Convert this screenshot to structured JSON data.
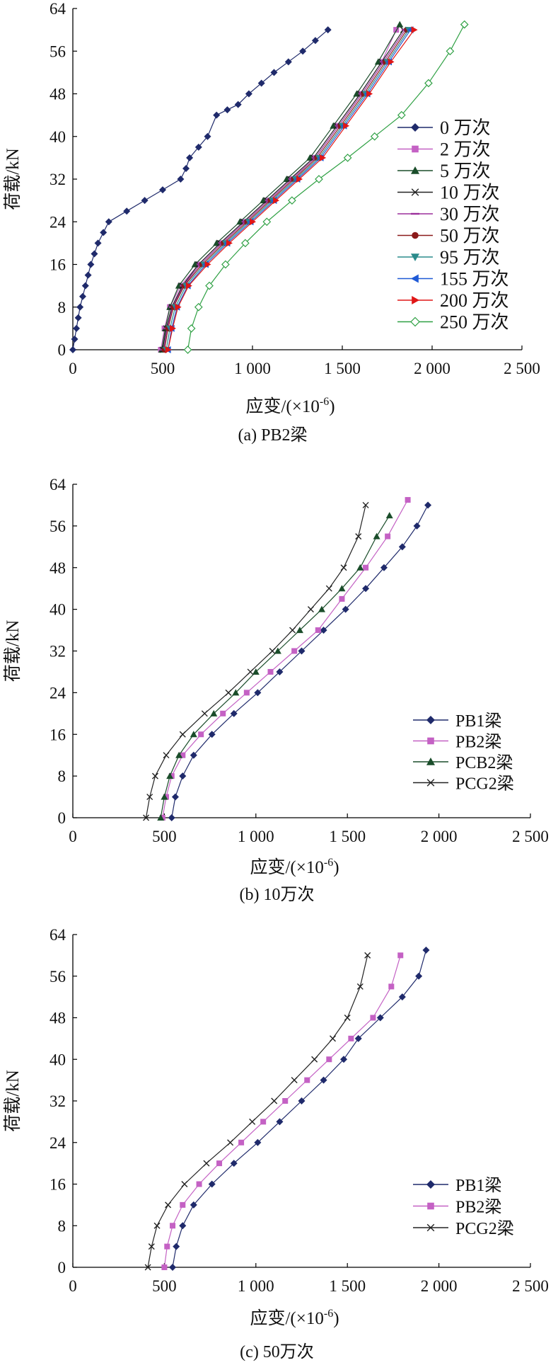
{
  "chart_data": [
    {
      "type": "line",
      "caption": "(a) PB2梁",
      "xlabel": "应变/(×10",
      "xlabel_sup": "-6",
      "xlabel_end": ")",
      "ylabel": "荷载/kN",
      "xlim": [
        0,
        2500
      ],
      "ylim": [
        0,
        64
      ],
      "xticks": [
        "0",
        "500",
        "1 000",
        "1 500",
        "2 000",
        "2 500"
      ],
      "yticks": [
        "0",
        "8",
        "16",
        "24",
        "32",
        "40",
        "48",
        "56",
        "64"
      ],
      "legend": "right",
      "series": [
        {
          "name": "0 万次",
          "color": "#1f2a6b",
          "marker": "diamond",
          "x": [
            0,
            10,
            20,
            30,
            40,
            55,
            70,
            85,
            100,
            120,
            140,
            170,
            200,
            300,
            400,
            500,
            600,
            630,
            650,
            700,
            750,
            800,
            860,
            920,
            980,
            1050,
            1120,
            1200,
            1280,
            1350,
            1420
          ],
          "y": [
            0,
            2,
            4,
            6,
            8,
            10,
            12,
            14,
            16,
            18,
            20,
            22,
            24,
            26,
            28,
            30,
            32,
            34,
            36,
            38,
            40,
            44,
            45,
            46,
            48,
            50,
            52,
            54,
            56,
            58,
            60
          ]
        },
        {
          "name": "2 万次",
          "color": "#c461c4",
          "marker": "square",
          "x": [
            490,
            510,
            540,
            600,
            700,
            820,
            950,
            1080,
            1210,
            1340,
            1470,
            1600,
            1720,
            1800
          ],
          "y": [
            0,
            4,
            8,
            12,
            16,
            20,
            24,
            28,
            32,
            36,
            42,
            48,
            54,
            60
          ]
        },
        {
          "name": "5 万次",
          "color": "#1a4d2a",
          "marker": "triangle",
          "x": [
            495,
            515,
            540,
            590,
            680,
            800,
            930,
            1060,
            1190,
            1320,
            1450,
            1580,
            1700,
            1820
          ],
          "y": [
            0,
            4,
            8,
            12,
            16,
            20,
            24,
            28,
            32,
            36,
            42,
            48,
            54,
            61
          ]
        },
        {
          "name": "10 万次",
          "color": "#222222",
          "marker": "x",
          "x": [
            500,
            520,
            550,
            610,
            700,
            820,
            950,
            1080,
            1210,
            1340,
            1470,
            1600,
            1720,
            1840
          ],
          "y": [
            0,
            4,
            8,
            12,
            16,
            20,
            24,
            28,
            32,
            36,
            42,
            48,
            54,
            60
          ]
        },
        {
          "name": "30 万次",
          "color": "#9b2f9b",
          "marker": "dash",
          "x": [
            505,
            525,
            555,
            615,
            710,
            830,
            960,
            1090,
            1220,
            1350,
            1480,
            1610,
            1730,
            1850
          ],
          "y": [
            0,
            4,
            8,
            12,
            16,
            20,
            24,
            28,
            32,
            36,
            42,
            48,
            54,
            60
          ]
        },
        {
          "name": "50 万次",
          "color": "#8b1a1a",
          "marker": "circle",
          "x": [
            510,
            530,
            560,
            620,
            720,
            840,
            970,
            1100,
            1230,
            1360,
            1490,
            1620,
            1740,
            1860
          ],
          "y": [
            0,
            4,
            8,
            12,
            16,
            20,
            24,
            28,
            32,
            36,
            42,
            48,
            54,
            60
          ]
        },
        {
          "name": "95 万次",
          "color": "#2a8b8b",
          "marker": "triangle-down",
          "x": [
            520,
            540,
            570,
            630,
            730,
            850,
            980,
            1110,
            1240,
            1370,
            1500,
            1630,
            1750,
            1870
          ],
          "y": [
            0,
            4,
            8,
            12,
            16,
            20,
            24,
            28,
            32,
            36,
            42,
            48,
            54,
            60
          ]
        },
        {
          "name": "155 万次",
          "color": "#1f5ad6",
          "marker": "triangle-left",
          "x": [
            530,
            550,
            580,
            640,
            740,
            860,
            990,
            1120,
            1250,
            1380,
            1510,
            1640,
            1760,
            1880
          ],
          "y": [
            0,
            4,
            8,
            12,
            16,
            20,
            24,
            28,
            32,
            36,
            42,
            48,
            54,
            60
          ]
        },
        {
          "name": "200 万次",
          "color": "#e01616",
          "marker": "triangle-right",
          "x": [
            530,
            555,
            585,
            645,
            750,
            870,
            1000,
            1130,
            1260,
            1390,
            1520,
            1650,
            1770,
            1900
          ],
          "y": [
            0,
            4,
            8,
            12,
            16,
            20,
            24,
            28,
            32,
            36,
            42,
            48,
            54,
            60
          ]
        },
        {
          "name": "250 万次",
          "color": "#2ea043",
          "marker": "open-diamond",
          "x": [
            640,
            660,
            700,
            760,
            850,
            960,
            1080,
            1220,
            1370,
            1530,
            1680,
            1830,
            1980,
            2100,
            2180
          ],
          "y": [
            0,
            4,
            8,
            12,
            16,
            20,
            24,
            28,
            32,
            36,
            40,
            44,
            50,
            56,
            61
          ]
        }
      ]
    },
    {
      "type": "line",
      "caption": "(b) 10万次",
      "xlabel": "应变/(×10",
      "xlabel_sup": "-6",
      "xlabel_end": ")",
      "ylabel": "荷载/kN",
      "xlim": [
        0,
        2500
      ],
      "ylim": [
        0,
        64
      ],
      "xticks": [
        "0",
        "500",
        "1 000",
        "1 500",
        "2 000",
        "2 500"
      ],
      "yticks": [
        "0",
        "8",
        "16",
        "24",
        "32",
        "40",
        "48",
        "56",
        "64"
      ],
      "legend": "bottom-right",
      "series": [
        {
          "name": "PB1梁",
          "color": "#1f2a6b",
          "marker": "diamond",
          "x": [
            540,
            560,
            600,
            660,
            760,
            880,
            1010,
            1130,
            1250,
            1370,
            1490,
            1600,
            1700,
            1800,
            1880,
            1940
          ],
          "y": [
            0,
            4,
            8,
            12,
            16,
            20,
            24,
            28,
            32,
            36,
            40,
            44,
            48,
            52,
            56,
            60
          ]
        },
        {
          "name": "PB2梁",
          "color": "#c461c4",
          "marker": "square",
          "x": [
            490,
            510,
            540,
            600,
            700,
            820,
            950,
            1080,
            1210,
            1340,
            1470,
            1600,
            1720,
            1830
          ],
          "y": [
            0,
            4,
            8,
            12,
            16,
            20,
            24,
            28,
            32,
            36,
            42,
            48,
            54,
            61
          ]
        },
        {
          "name": "PCB2梁",
          "color": "#1a4d2a",
          "marker": "triangle",
          "x": [
            480,
            500,
            530,
            580,
            660,
            770,
            890,
            1000,
            1120,
            1240,
            1360,
            1470,
            1570,
            1660,
            1730
          ],
          "y": [
            0,
            4,
            8,
            12,
            16,
            20,
            24,
            28,
            32,
            36,
            40,
            44,
            48,
            54,
            58
          ]
        },
        {
          "name": "PCG2梁",
          "color": "#222222",
          "marker": "x",
          "x": [
            400,
            420,
            450,
            510,
            600,
            720,
            850,
            970,
            1090,
            1200,
            1300,
            1400,
            1480,
            1560,
            1600
          ],
          "y": [
            0,
            4,
            8,
            12,
            16,
            20,
            24,
            28,
            32,
            36,
            40,
            44,
            48,
            54,
            60
          ]
        }
      ]
    },
    {
      "type": "line",
      "caption": "(c) 50万次",
      "xlabel": "应变/(×10",
      "xlabel_sup": "-6",
      "xlabel_end": ")",
      "ylabel": "荷载/kN",
      "xlim": [
        0,
        2500
      ],
      "ylim": [
        0,
        64
      ],
      "xticks": [
        "0",
        "500",
        "1 000",
        "1 500",
        "2 000",
        "2 500"
      ],
      "yticks": [
        "0",
        "8",
        "16",
        "24",
        "32",
        "40",
        "48",
        "56",
        "64"
      ],
      "legend": "bottom-right",
      "series": [
        {
          "name": "PB1梁",
          "color": "#1f2a6b",
          "marker": "diamond",
          "x": [
            545,
            565,
            600,
            660,
            760,
            880,
            1010,
            1130,
            1250,
            1370,
            1480,
            1560,
            1680,
            1800,
            1890,
            1930
          ],
          "y": [
            0,
            4,
            8,
            12,
            16,
            20,
            24,
            28,
            32,
            36,
            40,
            44,
            48,
            52,
            56,
            61
          ]
        },
        {
          "name": "PB2梁",
          "color": "#c461c4",
          "marker": "square",
          "x": [
            500,
            515,
            545,
            600,
            690,
            800,
            920,
            1040,
            1160,
            1280,
            1400,
            1520,
            1640,
            1740,
            1790
          ],
          "y": [
            0,
            4,
            8,
            12,
            16,
            20,
            24,
            28,
            32,
            36,
            40,
            44,
            48,
            54,
            60
          ]
        },
        {
          "name": "PCG2梁",
          "color": "#222222",
          "marker": "x",
          "x": [
            410,
            430,
            460,
            520,
            610,
            730,
            860,
            980,
            1100,
            1210,
            1320,
            1420,
            1500,
            1570,
            1610
          ],
          "y": [
            0,
            4,
            8,
            12,
            16,
            20,
            24,
            28,
            32,
            36,
            40,
            44,
            48,
            54,
            60
          ]
        }
      ]
    }
  ]
}
